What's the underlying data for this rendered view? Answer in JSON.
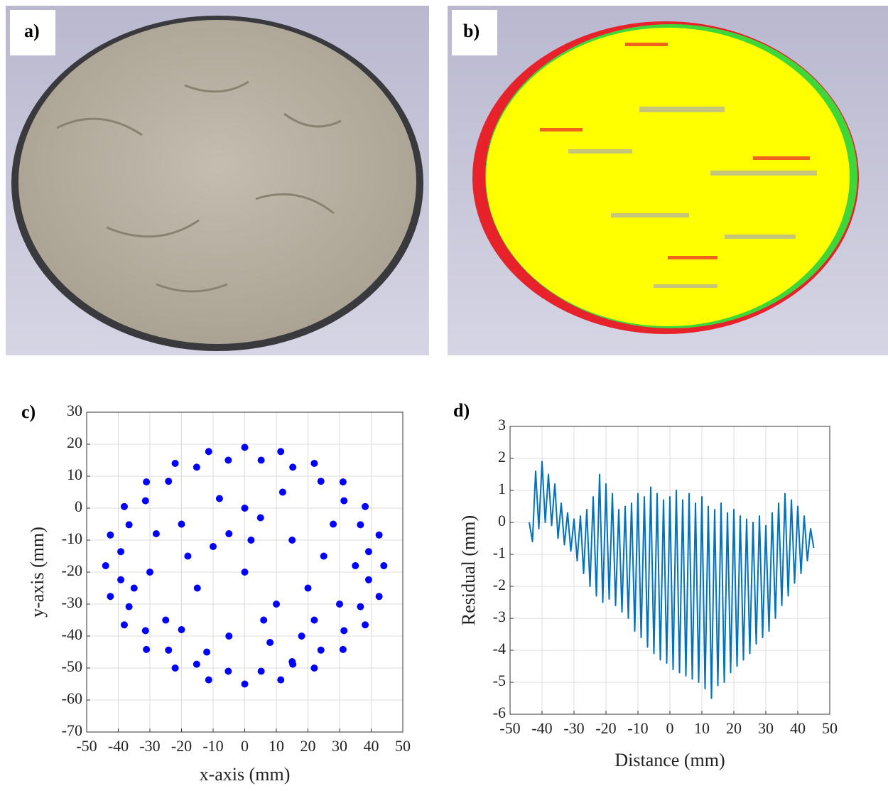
{
  "photos": [
    {
      "label": "a)"
    },
    {
      "label": "b)"
    }
  ],
  "chart_data": [
    {
      "type": "scatter",
      "label": "c)",
      "xlabel": "x-axis (mm)",
      "ylabel": "y-axis (mm)",
      "color": "#0000ff",
      "grid": true,
      "xlim": [
        -50,
        50
      ],
      "xticks": [
        -50,
        -40,
        -30,
        -20,
        -10,
        0,
        10,
        20,
        30,
        40,
        50
      ],
      "ylim": [
        -70,
        30
      ],
      "yticks": [
        -70,
        -60,
        -50,
        -40,
        -30,
        -20,
        -10,
        0,
        10,
        20,
        30
      ],
      "x": [
        44,
        42.5,
        38.1,
        31.1,
        22,
        11.4,
        0,
        -11.4,
        -22,
        -31.1,
        -38.1,
        -42.5,
        -44,
        -42.5,
        -38.1,
        -31.1,
        -22,
        -11.4,
        0,
        11.4,
        22,
        31.1,
        38.1,
        42.5,
        39.2,
        36.6,
        31.4,
        24.1,
        15.2,
        5.2,
        -5.2,
        -15.2,
        -24.1,
        -31.4,
        -36.6,
        -39.2,
        -39.2,
        -36.6,
        -31.4,
        -24.1,
        -15.2,
        -5.2,
        5.2,
        15.2,
        24.1,
        31.4,
        36.6,
        39.2,
        -20,
        -10,
        -5,
        5,
        15,
        25,
        -30,
        -15,
        0,
        10,
        20,
        30,
        -25,
        -5,
        8,
        18,
        -12,
        2,
        -8,
        12,
        -18,
        28,
        -28,
        35,
        -35,
        6,
        -20,
        15,
        0,
        22
      ],
      "y": [
        -18,
        -8.4,
        0.5,
        8.2,
        14.0,
        17.7,
        19,
        17.7,
        14.0,
        8.2,
        0.5,
        -8.4,
        -18,
        -27.6,
        -36.5,
        -44.2,
        -50.0,
        -53.7,
        -55,
        -53.7,
        -50.0,
        -44.2,
        -36.5,
        -27.6,
        -13.6,
        -5.2,
        2.3,
        8.4,
        12.8,
        15.0,
        15.0,
        12.8,
        8.4,
        2.3,
        -5.2,
        -13.6,
        -22.4,
        -30.8,
        -38.3,
        -44.4,
        -48.8,
        -51.0,
        -51.0,
        -48.8,
        -44.4,
        -38.3,
        -30.8,
        -22.4,
        -5,
        -12,
        -8,
        -3,
        -10,
        -15,
        -20,
        -25,
        -20,
        -30,
        -25,
        -30,
        -35,
        -40,
        -42,
        -40,
        -45,
        -10,
        3,
        5,
        -15,
        -5,
        -8,
        -18,
        -25,
        -35,
        -38,
        -48,
        0,
        -35
      ]
    },
    {
      "type": "line",
      "label": "d)",
      "xlabel": "Distance (mm)",
      "ylabel": "Residual (mm)",
      "color": "#0072bd",
      "grid": true,
      "xlim": [
        -50,
        50
      ],
      "xticks": [
        -50,
        -40,
        -30,
        -20,
        -10,
        0,
        10,
        20,
        30,
        40,
        50
      ],
      "ylim": [
        -6,
        3
      ],
      "yticks": [
        -6,
        -5,
        -4,
        -3,
        -2,
        -1,
        0,
        1,
        2,
        3
      ],
      "x": [
        -44,
        -43,
        -42,
        -41,
        -40,
        -39,
        -38,
        -37,
        -36,
        -35,
        -34,
        -33,
        -32,
        -31,
        -30,
        -29,
        -28,
        -27,
        -26,
        -25,
        -24,
        -23,
        -22,
        -21,
        -20,
        -19,
        -18,
        -17,
        -16,
        -15,
        -14,
        -13,
        -12,
        -11,
        -10,
        -9,
        -8,
        -7,
        -6,
        -5,
        -4,
        -3,
        -2,
        -1,
        0,
        1,
        2,
        3,
        4,
        5,
        6,
        7,
        8,
        9,
        10,
        11,
        12,
        13,
        14,
        15,
        16,
        17,
        18,
        19,
        20,
        21,
        22,
        23,
        24,
        25,
        26,
        27,
        28,
        29,
        30,
        31,
        32,
        33,
        34,
        35,
        36,
        37,
        38,
        39,
        40,
        41,
        42,
        43,
        44,
        45
      ],
      "values": [
        0.0,
        -0.6,
        1.6,
        -0.2,
        1.9,
        0.0,
        1.5,
        -0.1,
        1.2,
        -0.5,
        0.6,
        -0.7,
        0.3,
        -0.9,
        0.1,
        -1.2,
        0.2,
        -1.6,
        0.4,
        -2.0,
        0.8,
        -2.3,
        1.5,
        -2.5,
        1.2,
        -2.4,
        0.9,
        -2.6,
        0.4,
        -2.8,
        0.5,
        -3.0,
        0.6,
        -3.4,
        0.9,
        -3.6,
        0.8,
        -3.9,
        1.1,
        -4.1,
        0.9,
        -4.3,
        0.7,
        -4.4,
        0.8,
        -4.6,
        1.0,
        -4.7,
        0.7,
        -4.8,
        0.9,
        -4.9,
        0.6,
        -5.0,
        0.8,
        -5.2,
        0.5,
        -5.5,
        0.4,
        -5.1,
        0.6,
        -5.0,
        0.3,
        -4.7,
        0.4,
        -4.5,
        0.2,
        -4.3,
        0.1,
        -4.1,
        0.0,
        -3.8,
        0.2,
        -3.6,
        -0.1,
        -3.4,
        0.3,
        -3.0,
        0.6,
        -2.6,
        0.9,
        -2.3,
        0.7,
        -1.9,
        0.5,
        -1.6,
        0.2,
        -1.2,
        -0.2,
        -0.8
      ]
    }
  ]
}
